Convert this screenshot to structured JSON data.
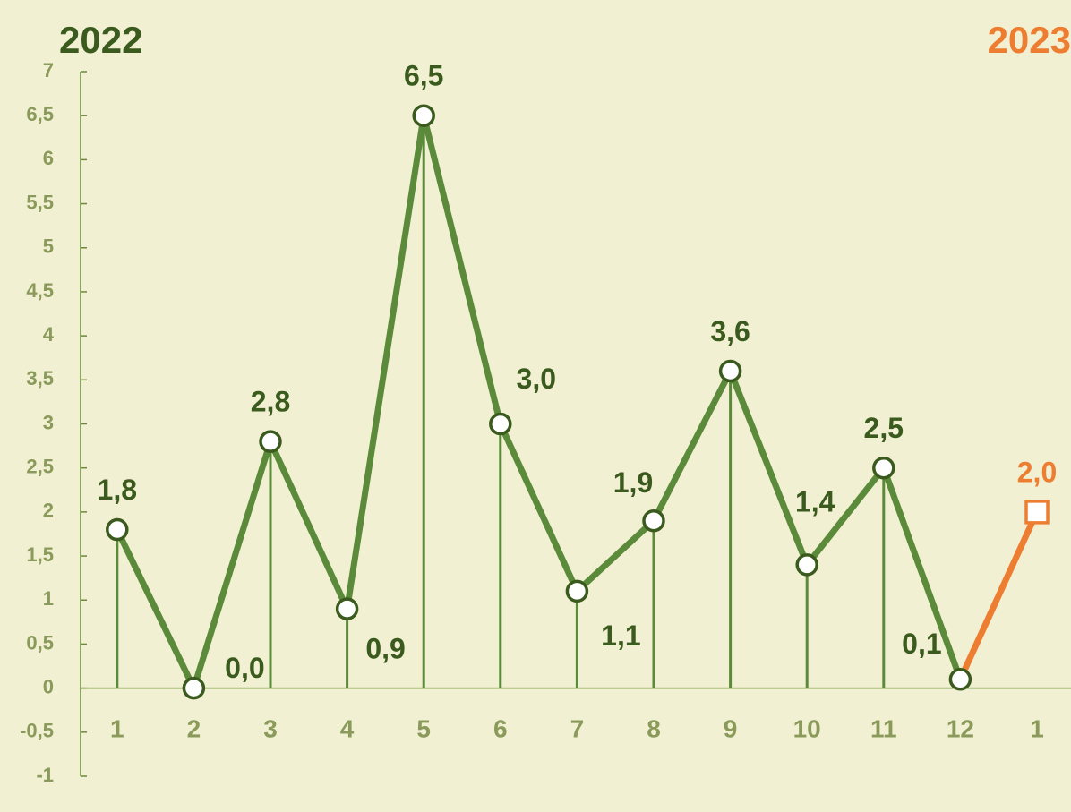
{
  "chart_data": {
    "type": "line",
    "categories": [
      "1",
      "2",
      "3",
      "4",
      "5",
      "6",
      "7",
      "8",
      "9",
      "10",
      "11",
      "12",
      "1"
    ],
    "series": [
      {
        "name": "2022",
        "color": "#3a5a1e",
        "line_color": "#5a8a3a",
        "values": [
          1.8,
          0,
          2.8,
          0.9,
          6.5,
          3.0,
          1.1,
          1.9,
          3.6,
          1.4,
          2.5,
          0.1,
          null
        ],
        "value_labels": [
          "1,8",
          "0,0",
          "2,8",
          "0,9",
          "6,5",
          "3,0",
          "1,1",
          "1,9",
          "3,6",
          "1,4",
          "2,5",
          "0,1",
          null
        ]
      },
      {
        "name": "2023",
        "color": "#ed7d31",
        "line_color": "#ed7d31",
        "values": [
          null,
          null,
          null,
          null,
          null,
          null,
          null,
          null,
          null,
          null,
          null,
          0.1,
          2.0
        ],
        "value_labels": [
          null,
          null,
          null,
          null,
          null,
          null,
          null,
          null,
          null,
          null,
          null,
          null,
          "2,0"
        ]
      }
    ],
    "ylim": [
      -1,
      7
    ],
    "yticks": [
      -1,
      {
        "value": -0.5,
        "label": "-0,5"
      },
      0,
      {
        "value": 0.5,
        "label": "0,5"
      },
      1,
      {
        "value": 1.5,
        "label": "1,5"
      },
      2,
      {
        "value": 2.5,
        "label": "2,5"
      },
      3,
      {
        "value": 3.5,
        "label": "3,5"
      },
      4,
      {
        "value": 4.5,
        "label": "4,5"
      },
      5,
      {
        "value": 5.5,
        "label": "5,5"
      },
      6,
      {
        "value": 6.5,
        "label": "6,5"
      },
      7
    ],
    "drop_lines": true
  }
}
